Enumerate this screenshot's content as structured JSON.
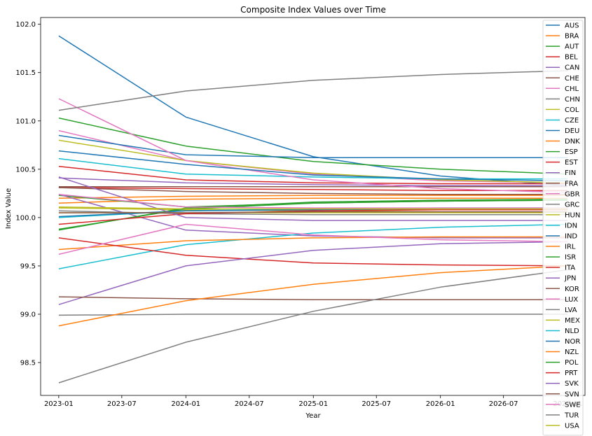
{
  "chart_data": {
    "type": "line",
    "title": "Composite Index Values over Time",
    "xlabel": "Year",
    "ylabel": "Index Value",
    "x": [
      "2023-01-01",
      "2024-01-01",
      "2025-01-01",
      "2026-01-01",
      "2027-01-01"
    ],
    "xlim": [
      "2022-11-10",
      "2027-02-20"
    ],
    "ylim": [
      98.16,
      102.07
    ],
    "x_ticks": [
      "2023-01-01",
      "2023-07-01",
      "2024-01-01",
      "2024-07-01",
      "2025-01-01",
      "2025-07-01",
      "2026-01-01",
      "2026-07-01",
      "2027-01-01"
    ],
    "x_tick_labels": [
      "2023-01",
      "2023-07",
      "2024-01",
      "2024-07",
      "2025-01",
      "2025-07",
      "2026-01",
      "2026-07",
      "2027-01"
    ],
    "y_ticks": [
      98.5,
      99.0,
      99.5,
      100.0,
      100.5,
      101.0,
      101.5,
      102.0
    ],
    "y_tick_labels": [
      "98.5",
      "99.0",
      "99.5",
      "100.0",
      "100.5",
      "101.0",
      "101.5",
      "102.0"
    ],
    "grid": false,
    "legend_position": "right",
    "series": [
      {
        "name": "AUS",
        "color": "#1f77b4",
        "values": [
          101.88,
          101.04,
          100.63,
          100.43,
          100.33
        ]
      },
      {
        "name": "BRA",
        "color": "#ff7f0e",
        "values": [
          100.2,
          100.22,
          100.23,
          100.23,
          100.23
        ]
      },
      {
        "name": "AUT",
        "color": "#2ca02c",
        "values": [
          101.03,
          100.74,
          100.58,
          100.5,
          100.45
        ]
      },
      {
        "name": "BEL",
        "color": "#d62728",
        "values": [
          100.31,
          100.3,
          100.29,
          100.28,
          100.28
        ]
      },
      {
        "name": "CAN",
        "color": "#9467bd",
        "values": [
          100.41,
          100.36,
          100.34,
          100.33,
          100.33
        ]
      },
      {
        "name": "CHE",
        "color": "#8c564b",
        "values": [
          100.31,
          100.27,
          100.25,
          100.24,
          100.24
        ]
      },
      {
        "name": "CHL",
        "color": "#e377c2",
        "values": [
          100.9,
          100.59,
          100.45,
          100.38,
          100.36
        ]
      },
      {
        "name": "CHN",
        "color": "#7f7f7f",
        "values": [
          100.07,
          100.04,
          100.03,
          100.03,
          100.03
        ]
      },
      {
        "name": "COL",
        "color": "#bcbd22",
        "values": [
          100.8,
          100.59,
          100.46,
          100.39,
          100.36
        ]
      },
      {
        "name": "CZE",
        "color": "#17becf",
        "values": [
          100.61,
          100.45,
          100.42,
          100.4,
          100.4
        ]
      },
      {
        "name": "DEU",
        "color": "#1f77b4",
        "values": [
          100.85,
          100.65,
          100.62,
          100.62,
          100.62
        ]
      },
      {
        "name": "DNK",
        "color": "#ff7f0e",
        "values": [
          100.15,
          100.19,
          100.2,
          100.2,
          100.2
        ]
      },
      {
        "name": "ESP",
        "color": "#2ca02c",
        "values": [
          100.23,
          100.11,
          100.15,
          100.17,
          100.18
        ]
      },
      {
        "name": "EST",
        "color": "#d62728",
        "values": [
          100.53,
          100.39,
          100.36,
          100.35,
          100.35
        ]
      },
      {
        "name": "FIN",
        "color": "#9467bd",
        "values": [
          100.24,
          99.87,
          99.81,
          99.79,
          99.79
        ]
      },
      {
        "name": "FRA",
        "color": "#8c564b",
        "values": [
          100.32,
          100.32,
          100.32,
          100.32,
          100.32
        ]
      },
      {
        "name": "GBR",
        "color": "#e377c2",
        "values": [
          101.23,
          100.59,
          100.39,
          100.3,
          100.26
        ]
      },
      {
        "name": "GRC",
        "color": "#7f7f7f",
        "values": [
          101.11,
          101.31,
          101.42,
          101.48,
          101.52
        ]
      },
      {
        "name": "HUN",
        "color": "#bcbd22",
        "values": [
          100.1,
          100.08,
          100.07,
          100.06,
          100.06
        ]
      },
      {
        "name": "IDN",
        "color": "#17becf",
        "values": [
          99.47,
          99.72,
          99.84,
          99.9,
          99.93
        ]
      },
      {
        "name": "IND",
        "color": "#1f77b4",
        "values": [
          100.69,
          100.55,
          100.44,
          100.4,
          100.38
        ]
      },
      {
        "name": "IRL",
        "color": "#ff7f0e",
        "values": [
          99.67,
          99.76,
          99.79,
          99.8,
          99.8
        ]
      },
      {
        "name": "ISR",
        "color": "#2ca02c",
        "values": [
          99.88,
          100.09,
          100.15,
          100.17,
          100.18
        ]
      },
      {
        "name": "ITA",
        "color": "#d62728",
        "values": [
          99.79,
          99.61,
          99.53,
          99.51,
          99.5
        ]
      },
      {
        "name": "JPN",
        "color": "#9467bd",
        "values": [
          99.1,
          99.5,
          99.66,
          99.73,
          99.75
        ]
      },
      {
        "name": "KOR",
        "color": "#8c564b",
        "values": [
          99.18,
          99.16,
          99.15,
          99.15,
          99.15
        ]
      },
      {
        "name": "LUX",
        "color": "#e377c2",
        "values": [
          99.62,
          99.93,
          99.82,
          99.77,
          99.75
        ]
      },
      {
        "name": "LVA",
        "color": "#7f7f7f",
        "values": [
          98.99,
          99.0,
          99.0,
          99.0,
          99.0
        ]
      },
      {
        "name": "MEX",
        "color": "#bcbd22",
        "values": [
          100.05,
          100.05,
          100.05,
          100.05,
          100.05
        ]
      },
      {
        "name": "NLD",
        "color": "#17becf",
        "values": [
          100.0,
          100.07,
          100.09,
          100.1,
          100.1
        ]
      },
      {
        "name": "NOR",
        "color": "#1f77b4",
        "values": [
          100.01,
          100.07,
          100.08,
          100.09,
          100.09
        ]
      },
      {
        "name": "NZL",
        "color": "#ff7f0e",
        "values": [
          98.88,
          99.14,
          99.31,
          99.43,
          99.5
        ]
      },
      {
        "name": "POL",
        "color": "#2ca02c",
        "values": [
          99.87,
          100.1,
          100.16,
          100.18,
          100.19
        ]
      },
      {
        "name": "PRT",
        "color": "#d62728",
        "values": [
          99.93,
          100.04,
          100.07,
          100.08,
          100.08
        ]
      },
      {
        "name": "SVK",
        "color": "#9467bd",
        "values": [
          100.42,
          100.0,
          99.97,
          99.97,
          99.97
        ]
      },
      {
        "name": "SVN",
        "color": "#8c564b",
        "values": [
          100.05,
          100.05,
          100.06,
          100.06,
          100.06
        ]
      },
      {
        "name": "SWE",
        "color": "#e377c2",
        "values": [
          100.24,
          100.11,
          100.1,
          100.1,
          100.1
        ]
      },
      {
        "name": "TUR",
        "color": "#7f7f7f",
        "values": [
          98.29,
          98.71,
          99.03,
          99.28,
          99.46
        ]
      },
      {
        "name": "USA",
        "color": "#bcbd22",
        "values": [
          100.11,
          100.09,
          100.09,
          100.09,
          100.09
        ]
      }
    ]
  }
}
